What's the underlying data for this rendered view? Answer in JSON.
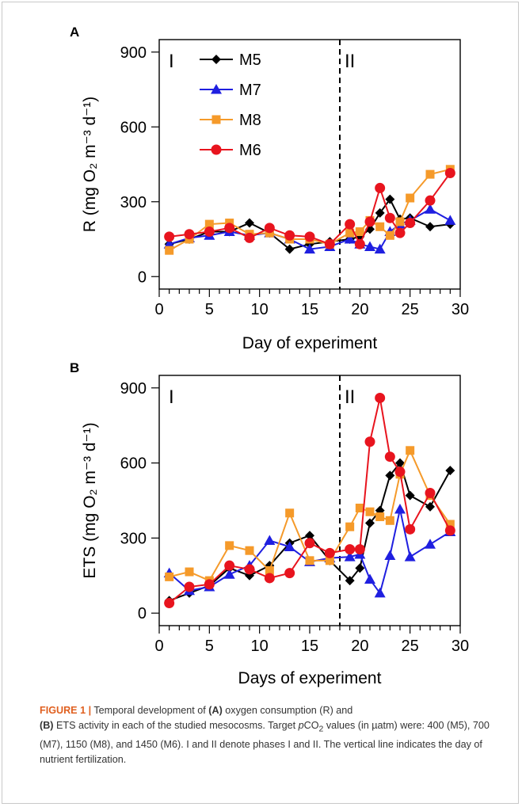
{
  "chart_data": [
    {
      "type": "line",
      "panel_label": "A",
      "ylabel": "R (mg O₂ m⁻³ d⁻¹)",
      "xlabel": "Day of experiment",
      "xlim": [
        0,
        30
      ],
      "ylim": [
        -50,
        950
      ],
      "xticks": [
        0,
        5,
        10,
        15,
        20,
        25,
        30
      ],
      "yticks": [
        0,
        300,
        600,
        900
      ],
      "vline": 18,
      "phase_labels": [
        "I",
        "II"
      ],
      "legend_position": "top-left",
      "series": [
        {
          "name": "M5",
          "color": "#000000",
          "marker": "diamond",
          "x": [
            1,
            3,
            5,
            7,
            9,
            11,
            13,
            15,
            17,
            19,
            20,
            21,
            22,
            23,
            24,
            25,
            27,
            29
          ],
          "values": [
            130,
            150,
            180,
            180,
            215,
            175,
            110,
            130,
            140,
            150,
            160,
            190,
            255,
            310,
            230,
            235,
            200,
            210
          ]
        },
        {
          "name": "M7",
          "color": "#1f1fe0",
          "marker": "triangle",
          "x": [
            1,
            3,
            5,
            7,
            9,
            11,
            13,
            15,
            17,
            19,
            20,
            21,
            22,
            23,
            24,
            25,
            27,
            29
          ],
          "values": [
            130,
            155,
            165,
            180,
            165,
            175,
            150,
            110,
            120,
            150,
            130,
            120,
            110,
            180,
            210,
            225,
            270,
            225
          ]
        },
        {
          "name": "M8",
          "color": "#f59a2a",
          "marker": "square",
          "x": [
            1,
            3,
            5,
            7,
            9,
            11,
            13,
            15,
            17,
            19,
            20,
            21,
            22,
            23,
            24,
            25,
            27,
            29
          ],
          "values": [
            105,
            150,
            210,
            215,
            170,
            175,
            150,
            150,
            130,
            175,
            180,
            225,
            200,
            165,
            220,
            315,
            410,
            430
          ]
        },
        {
          "name": "M6",
          "color": "#e8141e",
          "marker": "circle",
          "x": [
            1,
            3,
            5,
            7,
            9,
            11,
            13,
            15,
            17,
            19,
            20,
            21,
            22,
            23,
            24,
            25,
            27,
            29
          ],
          "values": [
            160,
            170,
            180,
            195,
            155,
            195,
            165,
            160,
            130,
            210,
            130,
            220,
            355,
            235,
            175,
            215,
            305,
            415
          ]
        }
      ]
    },
    {
      "type": "line",
      "panel_label": "B",
      "ylabel": "ETS (mg O₂ m⁻³ d⁻¹)",
      "xlabel": "Days of experiment",
      "xlim": [
        0,
        30
      ],
      "ylim": [
        -50,
        950
      ],
      "xticks": [
        0,
        5,
        10,
        15,
        20,
        25,
        30
      ],
      "yticks": [
        0,
        300,
        600,
        900
      ],
      "vline": 18,
      "phase_labels": [
        "I",
        "II"
      ],
      "series": [
        {
          "name": "M5",
          "color": "#000000",
          "marker": "diamond",
          "x": [
            1,
            3,
            5,
            7,
            9,
            11,
            13,
            15,
            17,
            19,
            20,
            21,
            22,
            23,
            24,
            25,
            27,
            29
          ],
          "values": [
            50,
            80,
            110,
            180,
            150,
            190,
            280,
            310,
            210,
            130,
            180,
            360,
            410,
            550,
            600,
            470,
            425,
            570
          ]
        },
        {
          "name": "M7",
          "color": "#1f1fe0",
          "marker": "triangle",
          "x": [
            1,
            3,
            5,
            7,
            9,
            11,
            13,
            15,
            17,
            19,
            20,
            21,
            22,
            23,
            24,
            25,
            27,
            29
          ],
          "values": [
            160,
            90,
            105,
            155,
            190,
            290,
            265,
            205,
            220,
            225,
            235,
            135,
            80,
            230,
            415,
            225,
            275,
            325
          ]
        },
        {
          "name": "M8",
          "color": "#f59a2a",
          "marker": "square",
          "x": [
            1,
            3,
            5,
            7,
            9,
            11,
            13,
            15,
            17,
            19,
            20,
            21,
            22,
            23,
            24,
            25,
            27,
            29
          ],
          "values": [
            145,
            165,
            130,
            270,
            250,
            170,
            400,
            210,
            210,
            345,
            420,
            405,
            385,
            370,
            555,
            650,
            470,
            355
          ]
        },
        {
          "name": "M6",
          "color": "#e8141e",
          "marker": "circle",
          "x": [
            1,
            3,
            5,
            7,
            9,
            11,
            13,
            15,
            17,
            19,
            20,
            21,
            22,
            23,
            24,
            25,
            27,
            29
          ],
          "values": [
            40,
            105,
            115,
            190,
            175,
            140,
            160,
            280,
            240,
            255,
            255,
            685,
            860,
            625,
            565,
            335,
            480,
            330
          ]
        }
      ]
    }
  ],
  "caption": {
    "figure_label": "FIGURE 1 |",
    "part1": " Temporal development of ",
    "a_label": "(A)",
    "part2": " oxygen consumption (R) and",
    "b_label": "(B)",
    "part3": " ETS activity in each of the studied mesocosms. Target ",
    "pco2_p": "p",
    "pco2_co": "CO",
    "pco2_sub": "2",
    "part4": " values (in µatm) were: 400 (M5), 700 (M7), 1150 (M8), and 1450 (M6). I and II denote phases I and II. The vertical line indicates the day of nutrient fertilization."
  }
}
